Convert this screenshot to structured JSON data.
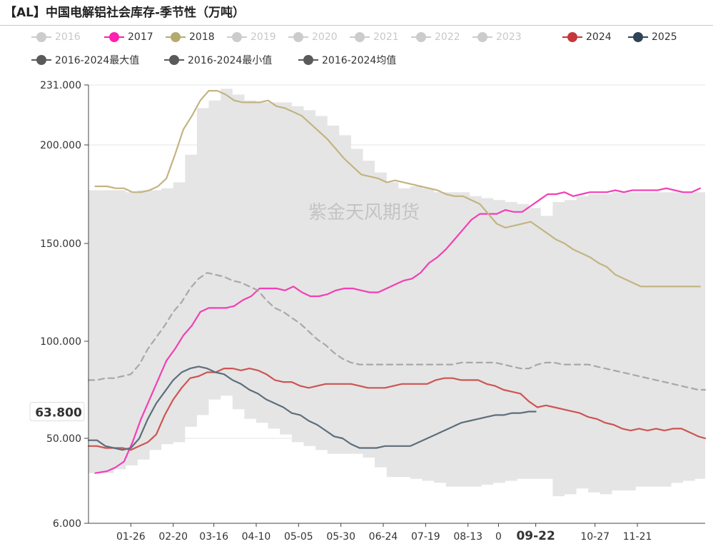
{
  "title": "【AL】中国电解铝社会库存-季节性（万吨）",
  "watermark": "紫金天风期货",
  "legend": [
    {
      "label": "2016",
      "color": "#cccccc",
      "style": "dot",
      "active": false
    },
    {
      "label": "2017",
      "color": "#ff1fb0",
      "style": "dot",
      "active": true
    },
    {
      "label": "2018",
      "color": "#b5aa6e",
      "style": "dot",
      "active": true
    },
    {
      "label": "2019",
      "color": "#cccccc",
      "style": "dot",
      "active": false
    },
    {
      "label": "2020",
      "color": "#cccccc",
      "style": "dot",
      "active": false
    },
    {
      "label": "2021",
      "color": "#cccccc",
      "style": "dot",
      "active": false
    },
    {
      "label": "2022",
      "color": "#cccccc",
      "style": "dot",
      "active": false
    },
    {
      "label": "2023",
      "color": "#cccccc",
      "style": "dot",
      "active": false
    },
    {
      "label": "2024",
      "color": "#c8363c",
      "style": "dot",
      "active": true
    },
    {
      "label": "2025",
      "color": "#2e4457",
      "style": "dot",
      "active": true
    },
    {
      "label": "2016-2024最大值",
      "color": "#5a5a5a",
      "style": "dot",
      "active": true
    },
    {
      "label": "2016-2024最小值",
      "color": "#5a5a5a",
      "style": "dot",
      "active": true
    },
    {
      "label": "2016-2024均值",
      "color": "#5a5a5a",
      "style": "dot",
      "active": true
    }
  ],
  "chart_data": {
    "type": "line",
    "title": "【AL】中国电解铝社会库存-季节性（万吨）",
    "x_domain_days": [
      1,
      365
    ],
    "x_ticks": [
      {
        "label": "01-26",
        "day": 26
      },
      {
        "label": "02-20",
        "day": 51
      },
      {
        "label": "03-16",
        "day": 75
      },
      {
        "label": "04-10",
        "day": 100
      },
      {
        "label": "05-05",
        "day": 125
      },
      {
        "label": "05-30",
        "day": 150
      },
      {
        "label": "06-24",
        "day": 175
      },
      {
        "label": "07-19",
        "day": 200
      },
      {
        "label": "08-13",
        "day": 225
      },
      {
        "label": "0",
        "day": 243
      },
      {
        "label": "09-22",
        "day": 265,
        "bold": true
      },
      {
        "label": "10-27",
        "day": 300
      },
      {
        "label": "11-21",
        "day": 325
      }
    ],
    "y_ticks": [
      231.0,
      200.0,
      150.0,
      100.0,
      50.0,
      6.0
    ],
    "y_tick_labels": [
      "231.000",
      "200.000",
      "150.000",
      "100.000",
      "50.000",
      "6.000"
    ],
    "ylim": [
      6.0,
      231.0
    ],
    "grid": true,
    "pointer_label": "63.800",
    "pointer_value": 63.8,
    "band": {
      "name": "2016-2024最大值 / 2016-2024最小值",
      "color": "#e5e5e5",
      "x": [
        1,
        16,
        23,
        30,
        37,
        44,
        51,
        58,
        65,
        72,
        79,
        86,
        93,
        100,
        107,
        114,
        121,
        128,
        135,
        142,
        149,
        156,
        163,
        170,
        177,
        184,
        191,
        198,
        205,
        212,
        219,
        226,
        233,
        240,
        247,
        254,
        261,
        268,
        275,
        282,
        289,
        296,
        303,
        310,
        317,
        324,
        331,
        338,
        345,
        352,
        359,
        365
      ],
      "max": [
        177,
        177,
        176,
        177,
        177,
        178,
        181,
        195,
        219,
        223,
        229,
        226,
        223,
        222,
        222,
        222,
        220,
        218,
        215,
        210,
        205,
        198,
        192,
        186,
        181,
        178,
        179,
        178,
        176,
        176,
        176,
        174,
        173,
        172,
        171,
        170,
        168,
        164,
        171,
        172,
        174,
        175,
        175,
        176,
        176,
        176,
        176,
        176,
        176,
        176,
        176,
        176
      ],
      "min": [
        32,
        34,
        36,
        39,
        44,
        47,
        48,
        56,
        62,
        70,
        72,
        65,
        60,
        58,
        55,
        52,
        48,
        46,
        44,
        42,
        42,
        42,
        40,
        35,
        30,
        30,
        29,
        28,
        27,
        25,
        25,
        25,
        26,
        27,
        28,
        29,
        29,
        29,
        20,
        21,
        24,
        22,
        21,
        23,
        23,
        25,
        25,
        25,
        27,
        28,
        29,
        29
      ]
    },
    "series": [
      {
        "name": "2017",
        "color": "#f23fb5",
        "x": [
          5,
          12,
          17,
          22,
          27,
          32,
          37,
          42,
          47,
          52,
          57,
          62,
          67,
          72,
          77,
          82,
          87,
          92,
          97,
          102,
          107,
          112,
          117,
          122,
          127,
          132,
          137,
          142,
          147,
          152,
          157,
          162,
          167,
          172,
          177,
          182,
          187,
          192,
          197,
          202,
          207,
          212,
          217,
          222,
          227,
          232,
          237,
          242,
          247,
          252,
          257,
          262,
          267,
          272,
          277,
          282,
          287,
          292,
          297,
          302,
          307,
          312,
          317,
          322,
          327,
          332,
          337,
          342,
          347,
          352,
          357,
          362
        ],
        "values": [
          32,
          33,
          35,
          38,
          48,
          60,
          70,
          80,
          90,
          96,
          103,
          108,
          115,
          117,
          117,
          117,
          118,
          121,
          123,
          127,
          127,
          127,
          126,
          128,
          125,
          123,
          123,
          124,
          126,
          127,
          127,
          126,
          125,
          125,
          127,
          129,
          131,
          132,
          135,
          140,
          143,
          147,
          152,
          157,
          162,
          165,
          165,
          165,
          167,
          166,
          166,
          169,
          172,
          175,
          175,
          176,
          174,
          175,
          176,
          176,
          176,
          177,
          176,
          177,
          177,
          177,
          177,
          178,
          177,
          176,
          176,
          178
        ]
      },
      {
        "name": "2018",
        "color": "#c2b482",
        "x": [
          5,
          12,
          17,
          22,
          27,
          32,
          37,
          42,
          47,
          52,
          57,
          62,
          67,
          72,
          77,
          82,
          87,
          92,
          97,
          102,
          107,
          112,
          117,
          122,
          127,
          132,
          137,
          142,
          147,
          152,
          157,
          162,
          167,
          172,
          177,
          182,
          187,
          192,
          197,
          202,
          207,
          212,
          217,
          222,
          227,
          232,
          237,
          242,
          247,
          252,
          257,
          262,
          267,
          272,
          277,
          282,
          287,
          292,
          297,
          302,
          307,
          312,
          317,
          322,
          327,
          332,
          337,
          342,
          347,
          352,
          357,
          362
        ],
        "values": [
          179,
          179,
          178,
          178,
          176,
          176,
          177,
          179,
          183,
          195,
          208,
          215,
          223,
          228,
          228,
          226,
          223,
          222,
          222,
          222,
          223,
          220,
          219,
          217,
          215,
          211,
          207,
          203,
          198,
          193,
          189,
          185,
          184,
          183,
          181,
          182,
          181,
          180,
          179,
          178,
          177,
          175,
          174,
          174,
          172,
          170,
          165,
          160,
          158,
          159,
          160,
          161,
          158,
          155,
          152,
          150,
          147,
          145,
          143,
          140,
          138,
          134,
          132,
          130,
          128,
          128,
          128,
          128,
          128,
          128,
          128,
          128
        ]
      },
      {
        "name": "2024",
        "color": "#cc5552",
        "x": [
          1,
          6,
          11,
          16,
          21,
          26,
          31,
          36,
          41,
          46,
          51,
          56,
          61,
          66,
          71,
          76,
          81,
          86,
          91,
          96,
          101,
          106,
          111,
          116,
          121,
          126,
          131,
          136,
          141,
          146,
          151,
          156,
          161,
          166,
          171,
          176,
          181,
          186,
          191,
          196,
          201,
          206,
          211,
          216,
          221,
          226,
          231,
          236,
          241,
          246,
          251,
          256,
          261,
          266,
          271,
          276,
          281,
          286,
          291,
          296,
          301,
          306,
          311,
          316,
          321,
          326,
          331,
          336,
          341,
          346,
          351,
          356,
          361,
          365
        ],
        "values": [
          46,
          46,
          45,
          45,
          45,
          44,
          46,
          48,
          52,
          62,
          70,
          76,
          81,
          82,
          84,
          84,
          86,
          86,
          85,
          86,
          85,
          83,
          80,
          79,
          79,
          77,
          76,
          77,
          78,
          78,
          78,
          78,
          77,
          76,
          76,
          76,
          77,
          78,
          78,
          78,
          78,
          80,
          81,
          81,
          80,
          80,
          80,
          78,
          77,
          75,
          74,
          73,
          69,
          66,
          67,
          66,
          65,
          64,
          63,
          61,
          60,
          58,
          57,
          55,
          54,
          55,
          54,
          55,
          54,
          55,
          55,
          53,
          51,
          50
        ]
      },
      {
        "name": "2025",
        "color": "#5d6e7b",
        "x": [
          1,
          6,
          11,
          16,
          21,
          26,
          31,
          36,
          41,
          46,
          51,
          56,
          61,
          66,
          71,
          76,
          81,
          86,
          91,
          96,
          101,
          106,
          111,
          116,
          121,
          126,
          131,
          136,
          141,
          146,
          151,
          156,
          161,
          166,
          171,
          176,
          181,
          186,
          191,
          196,
          201,
          206,
          211,
          216,
          221,
          226,
          231,
          236,
          241,
          246,
          251,
          256,
          261,
          265
        ],
        "values": [
          49,
          49,
          46,
          45,
          44,
          45,
          50,
          60,
          68,
          74,
          80,
          84,
          86,
          87,
          86,
          84,
          83,
          80,
          78,
          75,
          73,
          70,
          68,
          66,
          63,
          62,
          59,
          57,
          54,
          51,
          50,
          47,
          45,
          45,
          45,
          46,
          46,
          46,
          46,
          48,
          50,
          52,
          54,
          56,
          58,
          59,
          60,
          61,
          62,
          62,
          63,
          63,
          63.8,
          63.8
        ]
      },
      {
        "name": "2016-2024均值",
        "color": "#a8a8a8",
        "dashed": true,
        "x": [
          1,
          6,
          11,
          16,
          21,
          26,
          31,
          36,
          41,
          46,
          51,
          56,
          61,
          66,
          71,
          76,
          81,
          86,
          91,
          96,
          101,
          106,
          111,
          116,
          121,
          126,
          131,
          136,
          141,
          146,
          151,
          156,
          161,
          166,
          171,
          176,
          181,
          186,
          191,
          196,
          201,
          206,
          211,
          216,
          221,
          226,
          231,
          236,
          241,
          246,
          251,
          256,
          261,
          266,
          271,
          276,
          281,
          286,
          291,
          296,
          301,
          306,
          311,
          316,
          321,
          326,
          331,
          336,
          341,
          346,
          351,
          356,
          361,
          365
        ],
        "values": [
          80,
          80,
          81,
          81,
          82,
          83,
          88,
          96,
          102,
          108,
          115,
          120,
          127,
          132,
          135,
          134,
          133,
          131,
          130,
          128,
          126,
          121,
          117,
          115,
          112,
          109,
          105,
          101,
          98,
          94,
          91,
          89,
          88,
          88,
          88,
          88,
          88,
          88,
          88,
          88,
          88,
          88,
          88,
          88,
          89,
          89,
          89,
          89,
          89,
          88,
          87,
          86,
          86,
          88,
          89,
          89,
          88,
          88,
          88,
          88,
          87,
          86,
          85,
          84,
          83,
          82,
          81,
          80,
          79,
          78,
          77,
          76,
          75,
          75
        ]
      }
    ]
  }
}
